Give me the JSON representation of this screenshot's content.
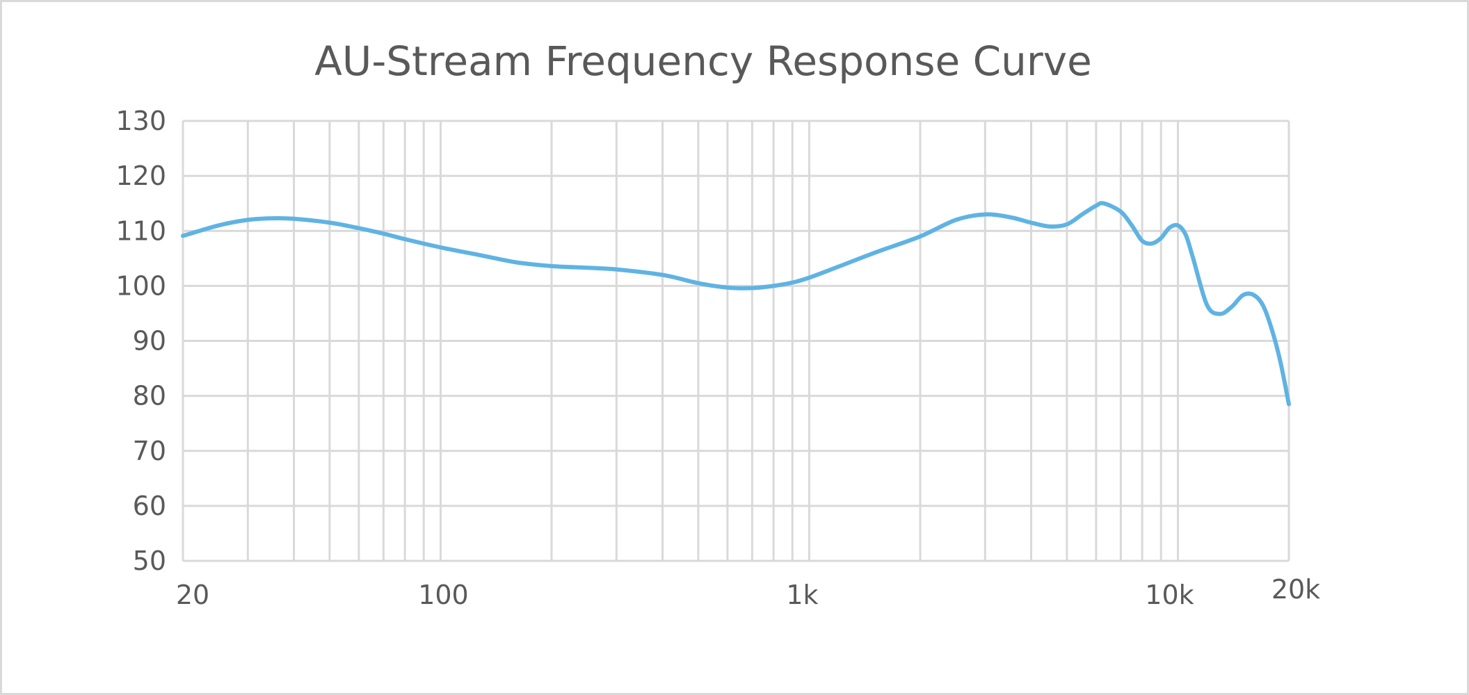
{
  "chart_data": {
    "type": "line",
    "title": "AU-Stream Frequency Response Curve",
    "xlabel": "",
    "ylabel": "",
    "x_scale": "log",
    "xlim": [
      20,
      20000
    ],
    "ylim": [
      50,
      130
    ],
    "y_ticks": [
      50,
      60,
      70,
      80,
      90,
      100,
      110,
      120,
      130
    ],
    "x_tick_labels": [
      {
        "value": 20,
        "label": "20"
      },
      {
        "value": 100,
        "label": "100"
      },
      {
        "value": 1000,
        "label": "1k"
      },
      {
        "value": 10000,
        "label": "10k"
      },
      {
        "value": 20000,
        "label": "20k"
      }
    ],
    "x_gridlines": [
      20,
      30,
      40,
      50,
      60,
      70,
      80,
      90,
      100,
      200,
      300,
      400,
      500,
      600,
      700,
      800,
      900,
      1000,
      2000,
      3000,
      4000,
      5000,
      6000,
      7000,
      8000,
      9000,
      10000,
      20000
    ],
    "grid": true,
    "legend": "none",
    "colors": {
      "line": "#5fb3e3",
      "grid": "#d9d9d9",
      "text": "#595959"
    },
    "series": [
      {
        "x": [
          20,
          25,
          30,
          35,
          40,
          50,
          60,
          70,
          80,
          100,
          130,
          160,
          200,
          250,
          300,
          400,
          500,
          600,
          700,
          800,
          900,
          1000,
          1200,
          1500,
          2000,
          2500,
          3000,
          3500,
          4000,
          4500,
          5000,
          5500,
          6000,
          6300,
          7000,
          7500,
          8000,
          8500,
          9000,
          9500,
          10000,
          10500,
          11000,
          12000,
          13000,
          14000,
          15000,
          16000,
          17000,
          18000,
          19000,
          20000
        ],
        "y": [
          109.1,
          111,
          112,
          112.3,
          112.2,
          111.5,
          110.5,
          109.5,
          108.5,
          107,
          105.5,
          104.3,
          103.6,
          103.3,
          103,
          102,
          100.5,
          99.7,
          99.6,
          100,
          100.6,
          101.5,
          103.5,
          106,
          109,
          112,
          113,
          112.5,
          111.5,
          110.8,
          111.2,
          113,
          114.6,
          115,
          113.5,
          111,
          108.2,
          107.7,
          108.7,
          110.6,
          111,
          109.3,
          105,
          96.5,
          94.9,
          96.2,
          98.3,
          98.4,
          96.5,
          92,
          86,
          78.5
        ]
      }
    ]
  }
}
